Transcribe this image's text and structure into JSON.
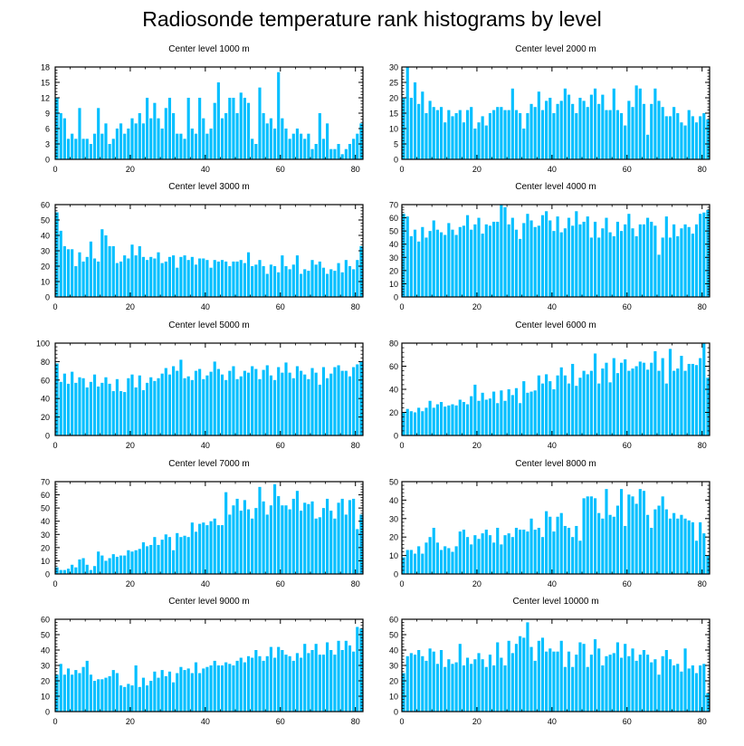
{
  "page_title": "Radiosonde temperature rank histograms by level",
  "style": {
    "bar_color": "#00bfff",
    "axis_color": "#000000",
    "background": "#ffffff"
  },
  "chart_data": [
    {
      "type": "bar",
      "title": "Center level 1000 m",
      "xlim": [
        0,
        82
      ],
      "ylim": [
        0,
        18
      ],
      "yticks": [
        0,
        3,
        6,
        9,
        12,
        15,
        18
      ],
      "xticks": [
        0,
        20,
        40,
        60,
        80
      ],
      "ytick_side": "left",
      "values": [
        12,
        9,
        8,
        4,
        5,
        4,
        10,
        4,
        4,
        3,
        5,
        10,
        5,
        7,
        3,
        4,
        6,
        7,
        5,
        6,
        8,
        7,
        9,
        7,
        12,
        8,
        11,
        8,
        6,
        10,
        12,
        9,
        5,
        5,
        4,
        12,
        6,
        5,
        12,
        8,
        5,
        6,
        11,
        15,
        8,
        9,
        12,
        12,
        9,
        13,
        12,
        11,
        4,
        3,
        14,
        9,
        7,
        8,
        6,
        17,
        8,
        6,
        4,
        5,
        6,
        5,
        4,
        5,
        2,
        3,
        9,
        4,
        7,
        2,
        2,
        3,
        1,
        2,
        3,
        4,
        5,
        7
      ]
    },
    {
      "type": "bar",
      "title": "Center level 2000 m",
      "xlim": [
        0,
        82
      ],
      "ylim": [
        0,
        30
      ],
      "yticks": [
        0,
        5,
        10,
        15,
        20,
        25,
        30
      ],
      "xticks": [
        0,
        20,
        40,
        60,
        80
      ],
      "ytick_side": "right",
      "values": [
        20,
        30,
        20,
        25,
        18,
        22,
        15,
        19,
        17,
        16,
        17,
        12,
        16,
        14,
        15,
        16,
        12,
        16,
        17,
        10,
        12,
        14,
        11,
        15,
        16,
        17,
        17,
        16,
        16,
        23,
        16,
        15,
        10,
        15,
        18,
        17,
        22,
        16,
        19,
        20,
        15,
        18,
        19,
        23,
        21,
        18,
        15,
        20,
        19,
        17,
        21,
        23,
        18,
        21,
        16,
        16,
        23,
        16,
        15,
        11,
        19,
        17,
        24,
        23,
        18,
        8,
        18,
        23,
        19,
        17,
        14,
        14,
        17,
        15,
        12,
        11,
        16,
        14,
        12,
        14,
        15,
        13
      ]
    },
    {
      "type": "bar",
      "title": "Center level 3000 m",
      "xlim": [
        0,
        82
      ],
      "ylim": [
        0,
        60
      ],
      "yticks": [
        0,
        10,
        20,
        30,
        40,
        50,
        60
      ],
      "xticks": [
        0,
        20,
        40,
        60,
        80
      ],
      "ytick_side": "left",
      "values": [
        55,
        43,
        33,
        31,
        31,
        20,
        29,
        23,
        26,
        36,
        25,
        23,
        44,
        40,
        33,
        33,
        22,
        23,
        27,
        25,
        34,
        27,
        33,
        26,
        24,
        26,
        25,
        29,
        22,
        23,
        26,
        27,
        19,
        26,
        27,
        24,
        26,
        21,
        25,
        25,
        24,
        19,
        24,
        23,
        24,
        23,
        20,
        23,
        23,
        24,
        22,
        29,
        20,
        21,
        24,
        20,
        15,
        21,
        20,
        16,
        27,
        20,
        18,
        21,
        27,
        15,
        18,
        17,
        24,
        21,
        23,
        19,
        15,
        18,
        17,
        22,
        16,
        24,
        20,
        18,
        24,
        33
      ]
    },
    {
      "type": "bar",
      "title": "Center level 4000 m",
      "xlim": [
        0,
        82
      ],
      "ylim": [
        0,
        70
      ],
      "yticks": [
        0,
        10,
        20,
        30,
        40,
        50,
        60,
        70
      ],
      "xticks": [
        0,
        20,
        40,
        60,
        80
      ],
      "ytick_side": "right",
      "values": [
        63,
        61,
        46,
        51,
        42,
        53,
        45,
        50,
        58,
        51,
        49,
        47,
        56,
        51,
        47,
        53,
        54,
        62,
        51,
        55,
        60,
        48,
        55,
        54,
        57,
        57,
        70,
        68,
        55,
        60,
        51,
        44,
        56,
        63,
        58,
        53,
        54,
        62,
        65,
        58,
        50,
        61,
        49,
        52,
        60,
        54,
        65,
        55,
        57,
        61,
        45,
        57,
        45,
        52,
        60,
        49,
        46,
        57,
        50,
        55,
        63,
        52,
        46,
        55,
        55,
        60,
        57,
        54,
        32,
        45,
        61,
        45,
        55,
        46,
        52,
        55,
        53,
        48,
        55,
        63,
        64,
        66
      ]
    },
    {
      "type": "bar",
      "title": "Center level 5000 m",
      "xlim": [
        0,
        82
      ],
      "ylim": [
        0,
        100
      ],
      "yticks": [
        0,
        20,
        40,
        60,
        80,
        100
      ],
      "xticks": [
        0,
        20,
        40,
        60,
        80
      ],
      "ytick_side": "left",
      "values": [
        78,
        58,
        67,
        56,
        69,
        57,
        63,
        62,
        52,
        58,
        66,
        53,
        57,
        63,
        56,
        48,
        61,
        48,
        47,
        62,
        66,
        52,
        65,
        49,
        57,
        63,
        59,
        62,
        67,
        73,
        66,
        75,
        70,
        82,
        62,
        64,
        60,
        70,
        72,
        61,
        65,
        69,
        80,
        72,
        66,
        60,
        70,
        75,
        61,
        64,
        70,
        68,
        75,
        72,
        61,
        71,
        76,
        65,
        60,
        74,
        68,
        79,
        68,
        62,
        75,
        70,
        66,
        61,
        73,
        68,
        55,
        74,
        62,
        67,
        74,
        76,
        70,
        70,
        64,
        74,
        77,
        80
      ]
    },
    {
      "type": "bar",
      "title": "Center level 6000 m",
      "xlim": [
        0,
        82
      ],
      "ylim": [
        0,
        80
      ],
      "yticks": [
        0,
        20,
        40,
        60,
        80
      ],
      "xticks": [
        0,
        20,
        40,
        60,
        80
      ],
      "ytick_side": "right",
      "values": [
        20,
        23,
        21,
        20,
        24,
        21,
        24,
        30,
        24,
        27,
        29,
        25,
        26,
        27,
        26,
        31,
        29,
        27,
        34,
        44,
        30,
        37,
        31,
        32,
        38,
        28,
        39,
        30,
        40,
        35,
        41,
        28,
        47,
        37,
        38,
        39,
        52,
        45,
        53,
        47,
        40,
        52,
        59,
        52,
        45,
        62,
        43,
        50,
        56,
        53,
        56,
        71,
        45,
        58,
        63,
        46,
        67,
        54,
        63,
        66,
        56,
        58,
        60,
        64,
        63,
        57,
        63,
        73,
        56,
        67,
        45,
        75,
        56,
        58,
        69,
        56,
        62,
        62,
        61,
        67,
        81,
        50
      ]
    },
    {
      "type": "bar",
      "title": "Center level 7000 m",
      "xlim": [
        0,
        82
      ],
      "ylim": [
        0,
        70
      ],
      "yticks": [
        0,
        10,
        20,
        30,
        40,
        50,
        60,
        70
      ],
      "xticks": [
        0,
        20,
        40,
        60,
        80
      ],
      "ytick_side": "left",
      "values": [
        5,
        3,
        3,
        4,
        7,
        5,
        11,
        12,
        7,
        3,
        6,
        17,
        14,
        10,
        12,
        15,
        13,
        14,
        14,
        18,
        17,
        18,
        19,
        24,
        21,
        22,
        28,
        22,
        26,
        30,
        28,
        18,
        31,
        28,
        29,
        28,
        39,
        32,
        38,
        39,
        37,
        40,
        42,
        37,
        37,
        62,
        45,
        52,
        57,
        48,
        56,
        49,
        42,
        50,
        66,
        55,
        45,
        52,
        68,
        59,
        52,
        52,
        49,
        57,
        63,
        48,
        54,
        53,
        55,
        42,
        43,
        50,
        57,
        48,
        42,
        54,
        57,
        45,
        56,
        57,
        34,
        45
      ]
    },
    {
      "type": "bar",
      "title": "Center level 8000 m",
      "xlim": [
        0,
        82
      ],
      "ylim": [
        0,
        50
      ],
      "yticks": [
        0,
        10,
        20,
        30,
        40,
        50
      ],
      "xticks": [
        0,
        20,
        40,
        60,
        80
      ],
      "ytick_side": "right",
      "values": [
        9,
        13,
        13,
        11,
        15,
        11,
        17,
        20,
        25,
        17,
        13,
        15,
        14,
        12,
        15,
        23,
        24,
        20,
        16,
        21,
        19,
        22,
        24,
        21,
        17,
        25,
        16,
        21,
        22,
        20,
        25,
        24,
        24,
        23,
        30,
        24,
        25,
        20,
        34,
        31,
        23,
        31,
        33,
        26,
        25,
        20,
        26,
        18,
        41,
        42,
        42,
        41,
        33,
        30,
        46,
        32,
        31,
        37,
        46,
        26,
        43,
        42,
        38,
        46,
        45,
        32,
        25,
        35,
        37,
        42,
        35,
        30,
        33,
        30,
        32,
        30,
        29,
        28,
        18,
        28,
        22,
        10
      ]
    },
    {
      "type": "bar",
      "title": "Center level 9000 m",
      "xlim": [
        0,
        82
      ],
      "ylim": [
        0,
        60
      ],
      "yticks": [
        0,
        10,
        20,
        30,
        40,
        50,
        60
      ],
      "xticks": [
        0,
        20,
        40,
        60,
        80
      ],
      "ytick_side": "left",
      "values": [
        24,
        31,
        24,
        28,
        24,
        27,
        25,
        29,
        33,
        24,
        20,
        21,
        21,
        22,
        23,
        27,
        25,
        17,
        16,
        18,
        17,
        30,
        16,
        22,
        17,
        20,
        26,
        22,
        27,
        23,
        26,
        19,
        25,
        29,
        27,
        28,
        25,
        32,
        25,
        28,
        29,
        30,
        33,
        30,
        30,
        32,
        31,
        30,
        33,
        35,
        32,
        36,
        35,
        40,
        36,
        33,
        36,
        42,
        35,
        42,
        40,
        37,
        36,
        33,
        38,
        35,
        44,
        38,
        40,
        44,
        37,
        37,
        45,
        40,
        37,
        46,
        40,
        46,
        43,
        39,
        55,
        54
      ]
    },
    {
      "type": "bar",
      "title": "Center level 10000 m",
      "xlim": [
        0,
        82
      ],
      "ylim": [
        0,
        60
      ],
      "yticks": [
        0,
        10,
        20,
        30,
        40,
        50,
        60
      ],
      "xticks": [
        0,
        20,
        40,
        60,
        80
      ],
      "ytick_side": "right",
      "values": [
        25,
        36,
        38,
        37,
        40,
        36,
        33,
        41,
        39,
        31,
        40,
        29,
        34,
        31,
        32,
        44,
        30,
        35,
        31,
        34,
        38,
        34,
        29,
        37,
        30,
        45,
        35,
        30,
        46,
        38,
        44,
        49,
        48,
        58,
        42,
        33,
        46,
        48,
        39,
        41,
        39,
        39,
        46,
        29,
        39,
        29,
        37,
        45,
        44,
        29,
        37,
        47,
        41,
        30,
        36,
        37,
        38,
        45,
        35,
        44,
        36,
        41,
        33,
        37,
        40,
        37,
        32,
        34,
        24,
        36,
        40,
        34,
        30,
        31,
        26,
        41,
        28,
        30,
        25,
        30,
        31,
        12
      ]
    }
  ]
}
